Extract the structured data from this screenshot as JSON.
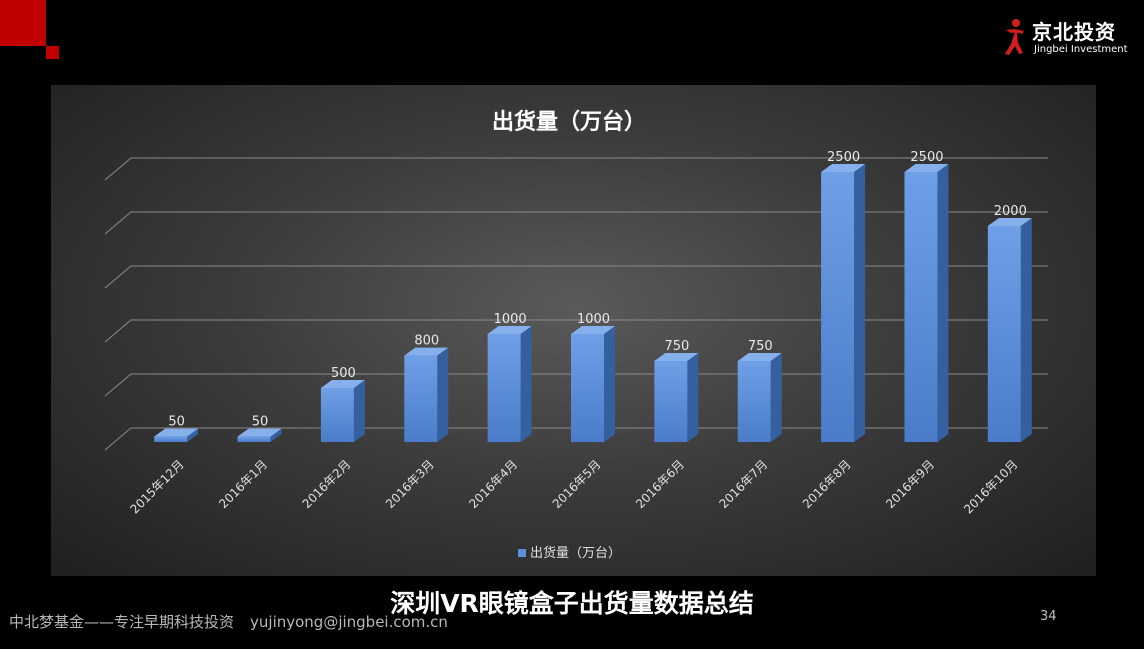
{
  "logo": {
    "name": "京北投资",
    "subtitle": "Jingbei Investment"
  },
  "chart_data": {
    "type": "bar",
    "title": "出货量（万台）",
    "categories": [
      "2015年12月",
      "2016年1月",
      "2016年2月",
      "2016年3月",
      "2016年4月",
      "2016年5月",
      "2016年6月",
      "2016年7月",
      "2016年8月",
      "2016年9月",
      "2016年10月"
    ],
    "series": [
      {
        "name": "出货量（万台）",
        "values": [
          50,
          50,
          500,
          800,
          1000,
          1000,
          750,
          750,
          2500,
          2500,
          2000
        ]
      }
    ],
    "xlabel": "",
    "ylabel": "",
    "ylim": [
      0,
      2500
    ],
    "grid": true,
    "legend": "bottom",
    "bar_color": "#5b8fd9"
  },
  "slide": {
    "title": "深圳VR眼镜盒子出货量数据总结"
  },
  "footer": {
    "text": "中北梦基金——专注早期科技投资",
    "email": "yujinyong@jingbei.com.cn",
    "page": "34"
  }
}
